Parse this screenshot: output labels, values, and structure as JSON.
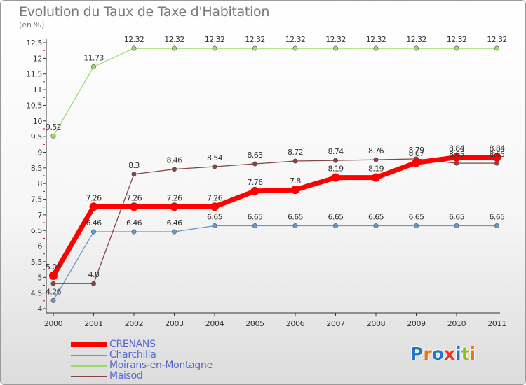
{
  "header": {
    "title": "Evolution du Taux de Taxe d'Habitation",
    "unit": "(en %)"
  },
  "logo": {
    "text": "Proxiti"
  },
  "chart_data": {
    "type": "line",
    "title": "Evolution du Taux de Taxe d'Habitation",
    "ylabel": "(en %)",
    "xlabel": "",
    "x": [
      "2000",
      "2001",
      "2002",
      "2003",
      "2004",
      "2005",
      "2006",
      "2007",
      "2008",
      "2009",
      "2010",
      "2011"
    ],
    "ylim": [
      4,
      12.5
    ],
    "yticks": [
      "4",
      "4.5",
      "5",
      "5.5",
      "6",
      "6.5",
      "7",
      "7.5",
      "8",
      "8.5",
      "9",
      "9.5",
      "10",
      "10.5",
      "11",
      "11.5",
      "12",
      "12.5"
    ],
    "grid": false,
    "legend_position": "bottom-left",
    "series": [
      {
        "name": "CRENANS",
        "color": "#ff0000",
        "values": [
          5.05,
          7.26,
          7.26,
          7.26,
          7.26,
          7.76,
          7.8,
          8.19,
          8.19,
          8.67,
          8.84,
          8.84
        ],
        "labels": [
          "5.05",
          "7.26",
          "7.26",
          "7.26",
          "7.26",
          "7.76",
          "7.8",
          "8.19",
          "8.19",
          "8.67",
          "8.84",
          "8.84"
        ]
      },
      {
        "name": "Charchilla",
        "color": "#6699cc",
        "values": [
          4.26,
          6.46,
          6.46,
          6.46,
          6.65,
          6.65,
          6.65,
          6.65,
          6.65,
          6.65,
          6.65,
          6.65
        ],
        "labels": [
          "4.26",
          "6.46",
          "6.46",
          "6.46",
          "6.65",
          "6.65",
          "6.65",
          "6.65",
          "6.65",
          "6.65",
          "6.65",
          "6.65"
        ]
      },
      {
        "name": "Moirans-en-Montagne",
        "color": "#99dd66",
        "values": [
          9.52,
          11.73,
          12.32,
          12.32,
          12.32,
          12.32,
          12.32,
          12.32,
          12.32,
          12.32,
          12.32,
          12.32
        ],
        "labels": [
          "9.52",
          "11.73",
          "12.32",
          "12.32",
          "12.32",
          "12.32",
          "12.32",
          "12.32",
          "12.32",
          "12.32",
          "12.32",
          "12.32"
        ]
      },
      {
        "name": "Maisod",
        "color": "#884444",
        "values": [
          4.8,
          4.8,
          8.3,
          8.46,
          8.54,
          8.63,
          8.72,
          8.74,
          8.76,
          8.79,
          8.65,
          8.65
        ],
        "labels": [
          "",
          "4.8",
          "8.3",
          "8.46",
          "8.54",
          "8.63",
          "8.72",
          "8.74",
          "8.76",
          "8.79",
          "8.65",
          "8.65"
        ]
      }
    ]
  }
}
